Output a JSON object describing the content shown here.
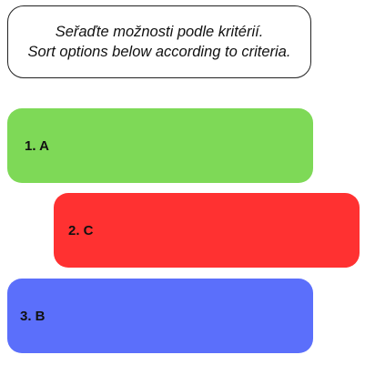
{
  "instruction": {
    "line_cz": "Seřaďte možnosti podle kritérií.",
    "line_en": "Sort options below according to criteria."
  },
  "options": [
    {
      "label": "1. A",
      "color": "#7ed957"
    },
    {
      "label": "2. C",
      "color": "#ff3131"
    },
    {
      "label": "3. B",
      "color": "#5b6ffb"
    }
  ]
}
